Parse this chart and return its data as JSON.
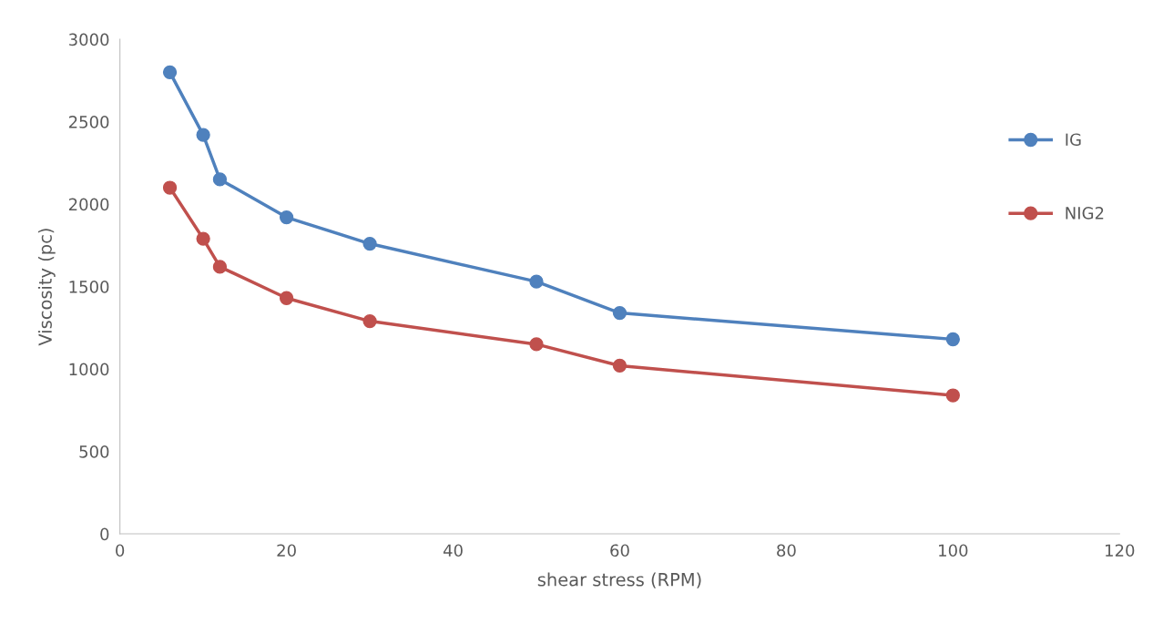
{
  "chart_data": {
    "type": "line",
    "xlabel": "shear stress (RPM)",
    "ylabel": "Viscosity (pc)",
    "xlim": [
      0,
      120
    ],
    "xticks": [
      0,
      20,
      40,
      60,
      80,
      100,
      120
    ],
    "ylim": [
      0,
      3000
    ],
    "yticks": [
      0,
      500,
      1000,
      1500,
      2000,
      2500,
      3000
    ],
    "x": [
      6,
      10,
      12,
      20,
      30,
      50,
      60,
      100
    ],
    "series": [
      {
        "name": "IG",
        "color": "#4f81bd",
        "values": [
          2800,
          2420,
          2150,
          1920,
          1760,
          1530,
          1340,
          1180
        ]
      },
      {
        "name": "NIG2",
        "color": "#c0504d",
        "values": [
          2100,
          1790,
          1620,
          1430,
          1290,
          1150,
          1020,
          840
        ]
      }
    ],
    "marker": "circle",
    "line_style": "solid",
    "grid": false,
    "legend": "right"
  }
}
